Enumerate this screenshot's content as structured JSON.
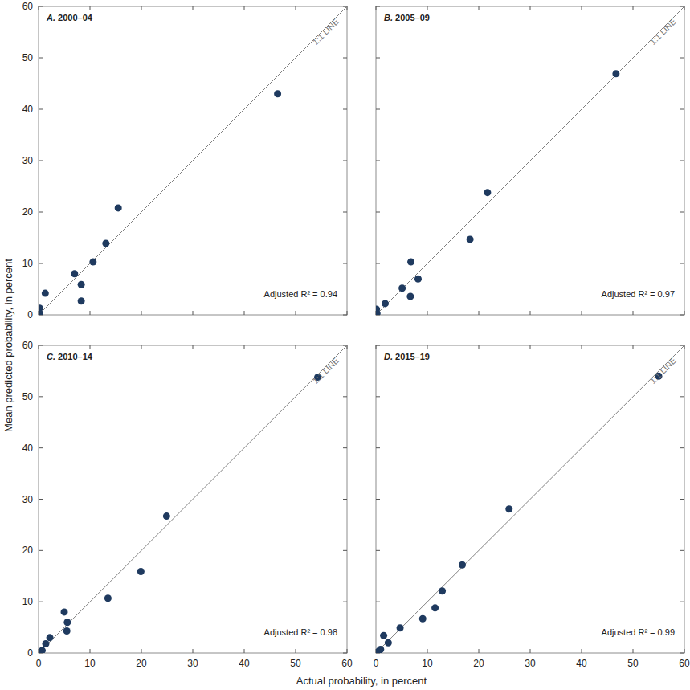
{
  "chart_data": [
    {
      "type": "scatter",
      "title": "A. 2000–04",
      "annotation": "Adjusted R² = 0.94",
      "x": [
        0.2,
        0.2,
        1.3,
        7.0,
        8.3,
        8.3,
        10.6,
        13.1,
        15.5,
        46.5
      ],
      "y": [
        1.3,
        0.3,
        4.2,
        8.0,
        5.9,
        2.7,
        10.3,
        13.9,
        20.8,
        43.0
      ],
      "color": "#1f3a5f",
      "marker": "circle",
      "reference_line": {
        "label": "1:1 LINE",
        "x": [
          0,
          60
        ],
        "y": [
          0,
          60
        ],
        "color": "#808080"
      },
      "xlim": [
        0,
        60
      ],
      "ylim": [
        0,
        60
      ],
      "xticks": [
        0,
        10,
        20,
        30,
        40,
        50,
        60
      ],
      "yticks": [
        0,
        10,
        20,
        30,
        40,
        50,
        60
      ],
      "tick_labels": "y",
      "grid": false
    },
    {
      "type": "scatter",
      "title": "B. 2005–09",
      "annotation": "Adjusted R² = 0.97",
      "x": [
        0.1,
        0.2,
        1.8,
        5.1,
        6.8,
        6.7,
        8.2,
        18.3,
        21.7,
        46.7
      ],
      "y": [
        1.1,
        0.3,
        2.2,
        5.2,
        10.3,
        3.6,
        7.0,
        14.7,
        23.8,
        46.9
      ],
      "color": "#1f3a5f",
      "marker": "circle",
      "reference_line": {
        "label": "1:1 LINE",
        "x": [
          0,
          60
        ],
        "y": [
          0,
          60
        ],
        "color": "#808080"
      },
      "xlim": [
        0,
        60
      ],
      "ylim": [
        0,
        60
      ],
      "xticks": [
        0,
        10,
        20,
        30,
        40,
        50,
        60
      ],
      "yticks": [
        0,
        10,
        20,
        30,
        40,
        50,
        60
      ],
      "tick_labels": false,
      "grid": false
    },
    {
      "type": "scatter",
      "title": "C. 2010–14",
      "annotation": "Adjusted R² = 0.98",
      "x": [
        0.7,
        1.4,
        2.2,
        5.0,
        5.6,
        5.5,
        13.5,
        19.9,
        24.9,
        54.3
      ],
      "y": [
        0.5,
        1.8,
        3.0,
        8.0,
        6.0,
        4.3,
        10.7,
        15.9,
        26.7,
        53.8
      ],
      "color": "#1f3a5f",
      "marker": "circle",
      "reference_line": {
        "label": "1:1 LINE",
        "x": [
          0,
          60
        ],
        "y": [
          0,
          60
        ],
        "color": "#808080"
      },
      "xlim": [
        0,
        60
      ],
      "ylim": [
        0,
        60
      ],
      "xticks": [
        0,
        10,
        20,
        30,
        40,
        50,
        60
      ],
      "yticks": [
        0,
        10,
        20,
        30,
        40,
        50,
        60
      ],
      "tick_labels": true,
      "grid": false
    },
    {
      "type": "scatter",
      "title": "D. 2015–19",
      "annotation": "Adjusted R² = 0.99",
      "x": [
        0.6,
        0.9,
        1.5,
        2.4,
        4.7,
        9.1,
        11.5,
        12.9,
        16.8,
        25.9,
        55.0
      ],
      "y": [
        0.4,
        0.7,
        3.4,
        2.0,
        4.9,
        6.7,
        8.8,
        12.1,
        17.2,
        28.1,
        54.0
      ],
      "color": "#1f3a5f",
      "marker": "circle",
      "reference_line": {
        "label": "1:1 LINE",
        "x": [
          0,
          60
        ],
        "y": [
          0,
          60
        ],
        "color": "#808080"
      },
      "xlim": [
        0,
        60
      ],
      "ylim": [
        0,
        60
      ],
      "xticks": [
        0,
        10,
        20,
        30,
        40,
        50,
        60
      ],
      "yticks": [
        0,
        10,
        20,
        30,
        40,
        50,
        60
      ],
      "tick_labels": "x",
      "grid": false
    }
  ],
  "shared": {
    "x_label": "Actual probability, in percent",
    "y_label": "Mean predicted probability, in percent"
  }
}
